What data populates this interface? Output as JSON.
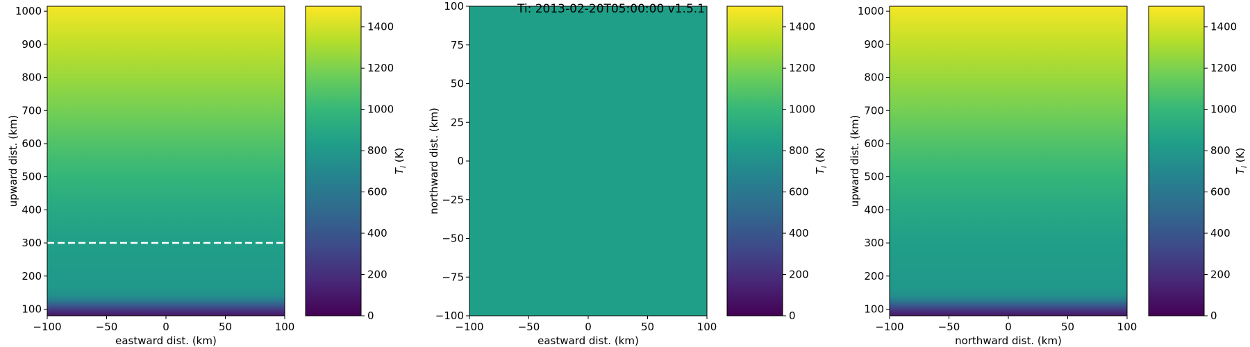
{
  "figure": {
    "suptitle": "Ti: 2013-02-20T05:00:00  v1.5.1"
  },
  "colormap": {
    "name": "viridis",
    "stops": [
      "#440154",
      "#482878",
      "#3e4a89",
      "#31688e",
      "#26828e",
      "#1f9e89",
      "#35b779",
      "#6ece58",
      "#b5de2b",
      "#fde725"
    ]
  },
  "chart_data": [
    {
      "type": "heatmap",
      "title": "",
      "xlabel": "eastward dist. (km)",
      "ylabel": "upward dist. (km)",
      "xlim": [
        -100,
        100
      ],
      "ylim": [
        80,
        1015
      ],
      "x_ticks": [
        -100,
        -50,
        0,
        50,
        100
      ],
      "y_ticks": [
        100,
        200,
        300,
        400,
        500,
        600,
        700,
        800,
        900,
        1000
      ],
      "profile": {
        "axis": "y",
        "points": [
          [
            80,
            80
          ],
          [
            95,
            220
          ],
          [
            110,
            400
          ],
          [
            125,
            600
          ],
          [
            140,
            740
          ],
          [
            160,
            790
          ],
          [
            200,
            810
          ],
          [
            300,
            840
          ],
          [
            400,
            900
          ],
          [
            500,
            985
          ],
          [
            600,
            1080
          ],
          [
            700,
            1180
          ],
          [
            800,
            1270
          ],
          [
            900,
            1360
          ],
          [
            1015,
            1480
          ]
        ]
      },
      "reference_line": {
        "value": 300,
        "style": "dashed",
        "color": "#ffffff"
      },
      "colorbar": {
        "label": "T_i (K)",
        "range": [
          0,
          1500
        ],
        "ticks": [
          0,
          200,
          400,
          600,
          800,
          1000,
          1200,
          1400
        ]
      }
    },
    {
      "type": "heatmap",
      "title": "",
      "xlabel": "eastward dist. (km)",
      "ylabel": "northward dist. (km)",
      "xlim": [
        -100,
        100
      ],
      "ylim": [
        -100,
        100
      ],
      "x_ticks": [
        -100,
        -50,
        0,
        50,
        100
      ],
      "y_ticks": [
        -100,
        -75,
        -50,
        -25,
        0,
        25,
        50,
        75,
        100
      ],
      "uniform_value": 840,
      "colorbar": {
        "label": "T_i (K)",
        "range": [
          0,
          1500
        ],
        "ticks": [
          0,
          200,
          400,
          600,
          800,
          1000,
          1200,
          1400
        ]
      }
    },
    {
      "type": "heatmap",
      "title": "",
      "xlabel": "northward dist. (km)",
      "ylabel": "upward dist. (km)",
      "xlim": [
        -100,
        100
      ],
      "ylim": [
        80,
        1015
      ],
      "x_ticks": [
        -100,
        -50,
        0,
        50,
        100
      ],
      "y_ticks": [
        100,
        200,
        300,
        400,
        500,
        600,
        700,
        800,
        900,
        1000
      ],
      "profile": {
        "axis": "y",
        "points": [
          [
            80,
            80
          ],
          [
            95,
            220
          ],
          [
            110,
            400
          ],
          [
            125,
            600
          ],
          [
            140,
            740
          ],
          [
            160,
            790
          ],
          [
            200,
            810
          ],
          [
            300,
            840
          ],
          [
            400,
            900
          ],
          [
            500,
            985
          ],
          [
            600,
            1080
          ],
          [
            700,
            1180
          ],
          [
            800,
            1270
          ],
          [
            900,
            1360
          ],
          [
            1015,
            1480
          ]
        ]
      },
      "colorbar": {
        "label": "T_i (K)",
        "range": [
          0,
          1500
        ],
        "ticks": [
          0,
          200,
          400,
          600,
          800,
          1000,
          1200,
          1400
        ]
      }
    }
  ]
}
